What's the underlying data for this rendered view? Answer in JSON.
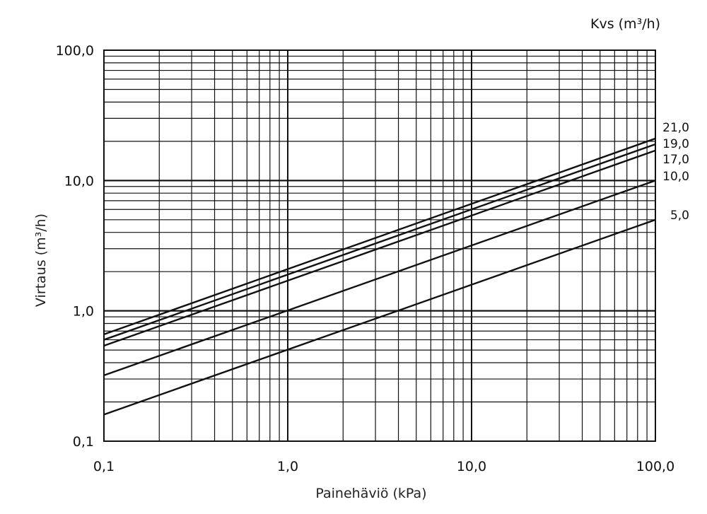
{
  "chart_data": {
    "type": "line",
    "title": "",
    "xlabel": "Painehäviö (kPa)",
    "ylabel": "Virtaus (m³/h)",
    "legend_title": "Kvs (m³/h)",
    "xscale": "log",
    "yscale": "log",
    "xlim": [
      0.1,
      100
    ],
    "ylim": [
      0.1,
      100
    ],
    "xticks": [
      0.1,
      1,
      10,
      100
    ],
    "xtick_labels": [
      "0,1",
      "1,0",
      "10,0",
      "100,0"
    ],
    "yticks": [
      0.1,
      1,
      10,
      100
    ],
    "ytick_labels": [
      "0,1",
      "1,0",
      "10,0",
      "100,0"
    ],
    "grid": true,
    "series": [
      {
        "name": "21,0",
        "x": [
          0.1,
          100
        ],
        "y": [
          0.66,
          21.0
        ]
      },
      {
        "name": "19,0",
        "x": [
          0.1,
          100
        ],
        "y": [
          0.6,
          19.0
        ]
      },
      {
        "name": "17,0",
        "x": [
          0.1,
          100
        ],
        "y": [
          0.54,
          17.0
        ]
      },
      {
        "name": "10,0",
        "x": [
          0.1,
          100
        ],
        "y": [
          0.32,
          10.0
        ]
      },
      {
        "name": "5,0",
        "x": [
          0.1,
          100
        ],
        "y": [
          0.16,
          5.0
        ]
      }
    ]
  }
}
